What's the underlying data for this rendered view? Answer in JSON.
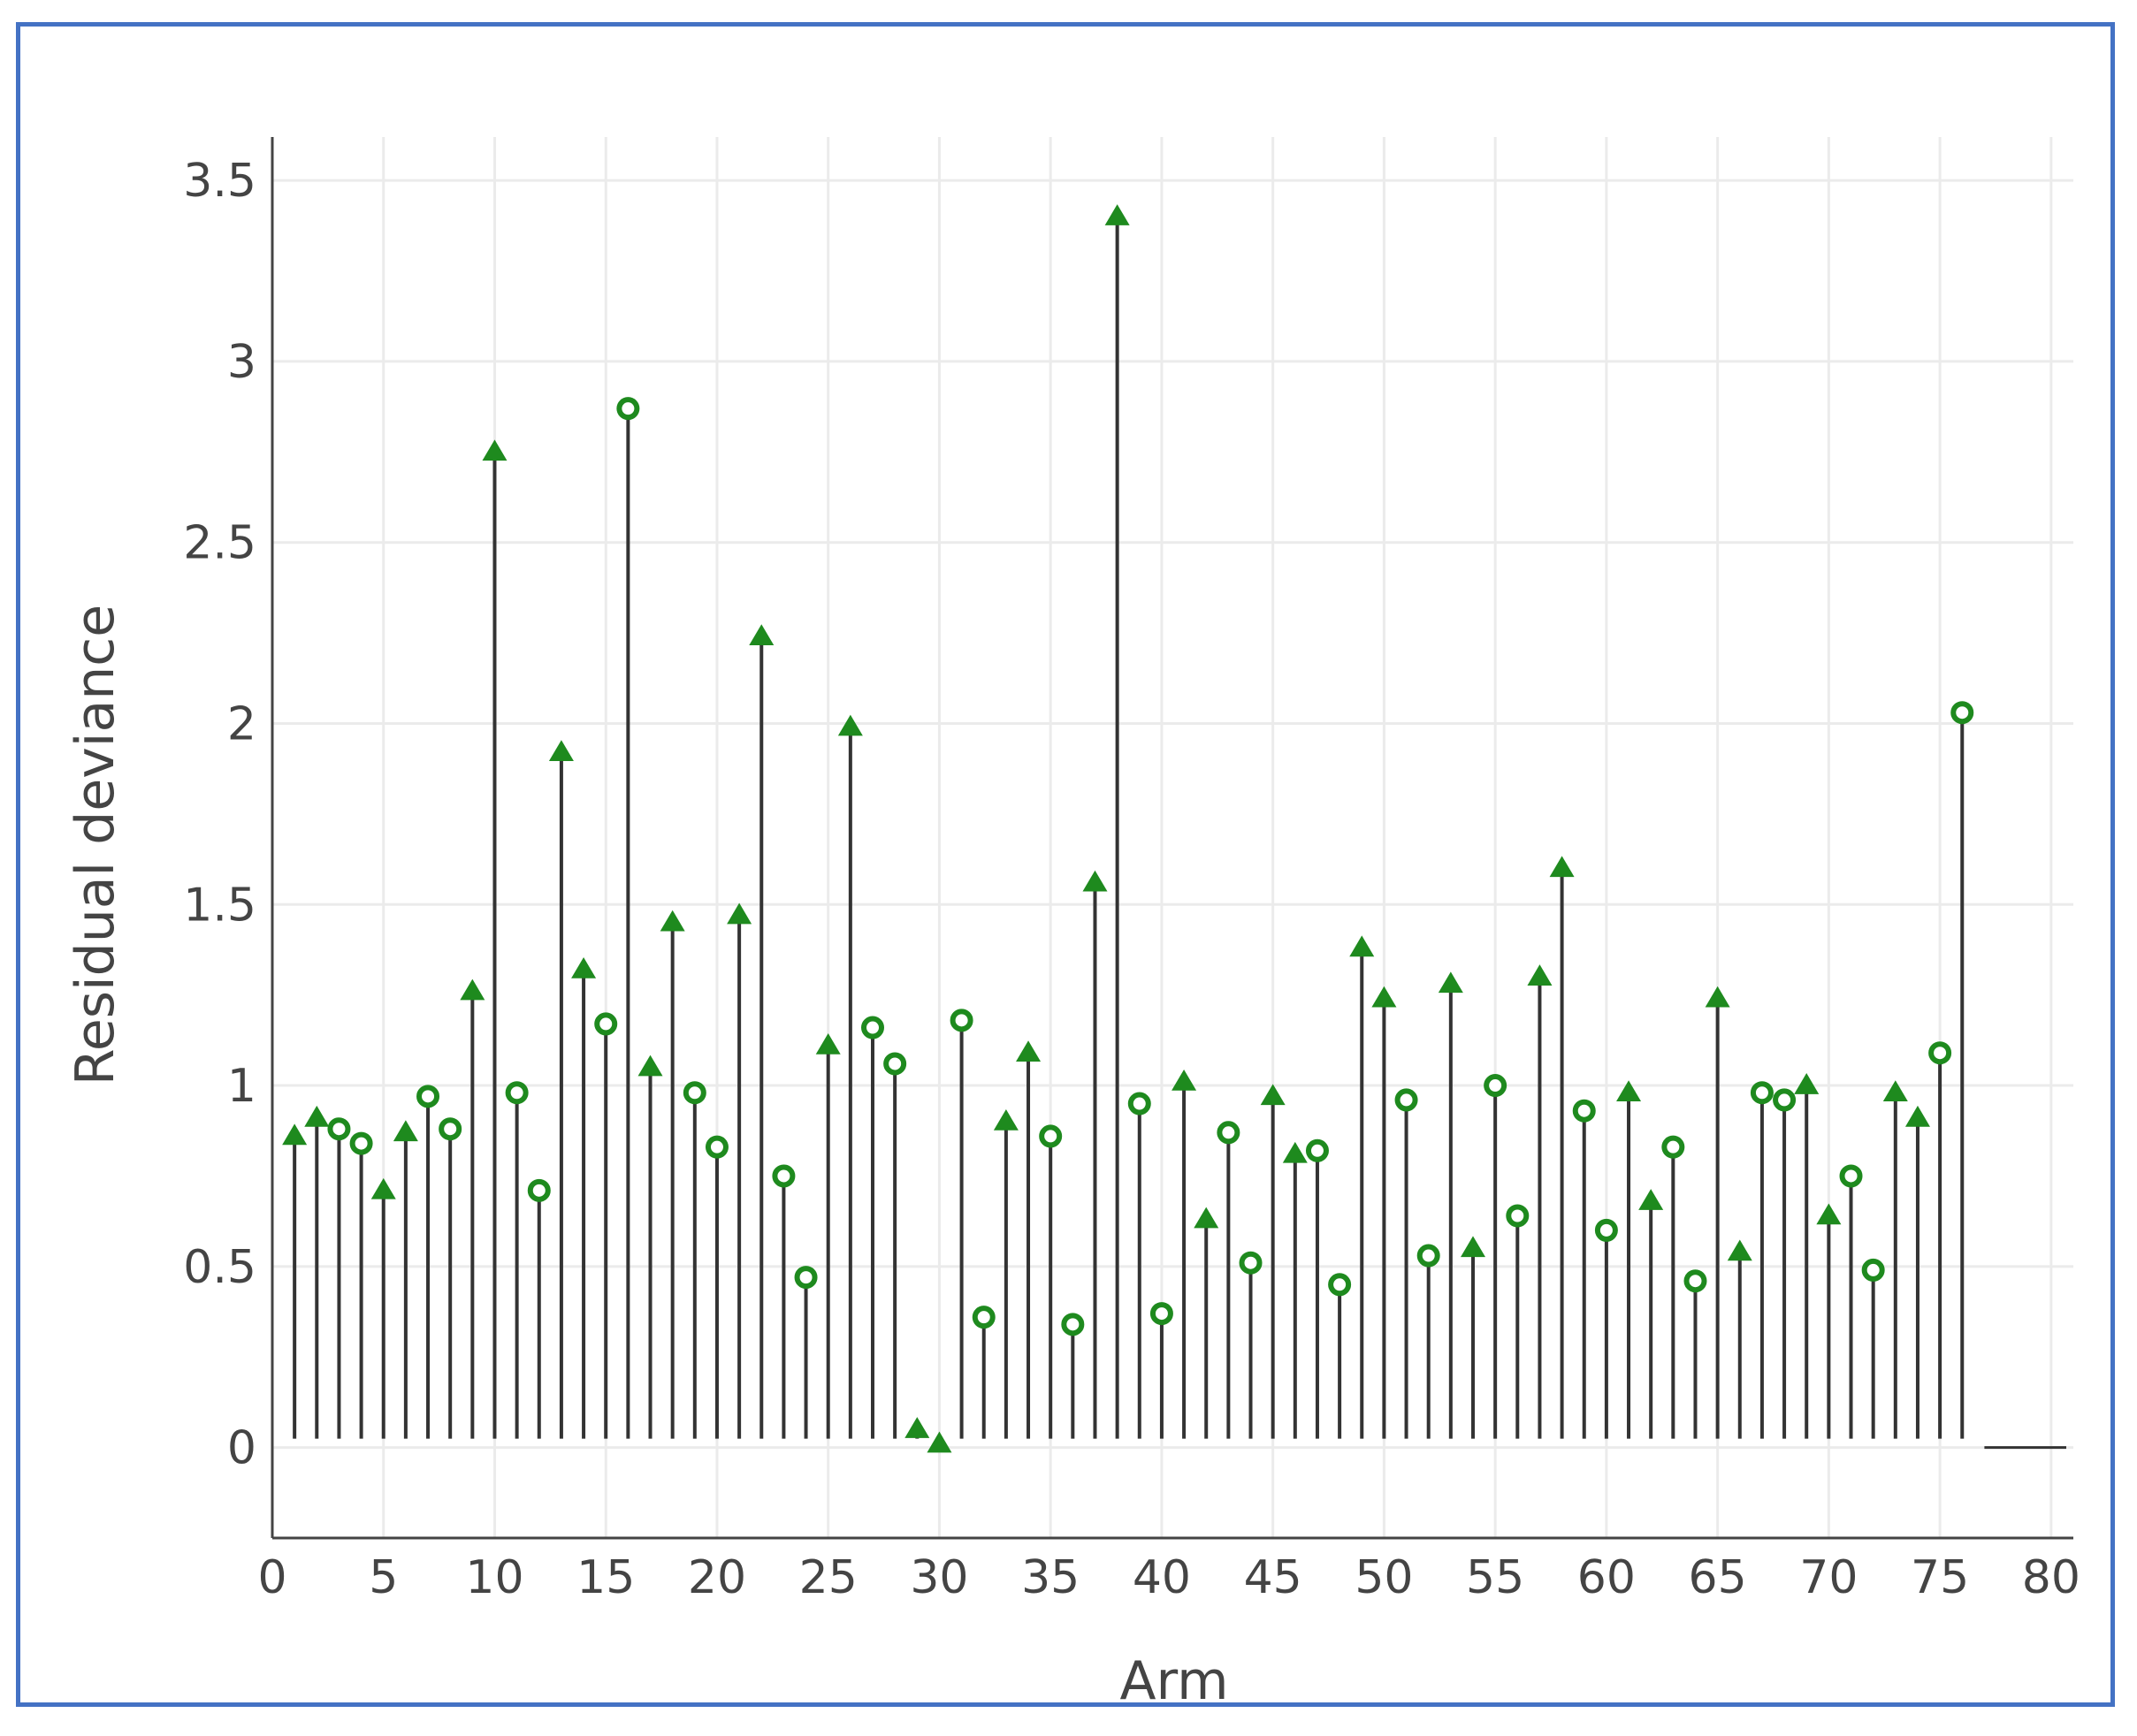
{
  "chart_data": {
    "type": "scatter",
    "style": "stem",
    "xlabel": "Arm",
    "ylabel": "Residual deviance",
    "xlim": [
      0,
      81
    ],
    "ylim": [
      -0.25,
      3.62
    ],
    "xticks": [
      "0",
      "5",
      "10",
      "15",
      "20",
      "25",
      "30",
      "35",
      "40",
      "45",
      "50",
      "55",
      "60",
      "65",
      "70",
      "75",
      "80"
    ],
    "yticks": [
      "0",
      "0.5",
      "1",
      "1.5",
      "2",
      "2.5",
      "3",
      "3.5"
    ],
    "grid": true,
    "marker_color": "#1e8a1e",
    "stem_color": "#333333",
    "zero_line_range": [
      77,
      81
    ],
    "x": [
      1,
      2,
      3,
      4,
      5,
      6,
      7,
      8,
      9,
      10,
      11,
      12,
      13,
      14,
      15,
      16,
      17,
      18,
      19,
      20,
      21,
      22,
      23,
      24,
      25,
      26,
      27,
      28,
      29,
      30,
      31,
      32,
      33,
      34,
      35,
      36,
      37,
      38,
      39,
      40,
      41,
      42,
      43,
      44,
      45,
      46,
      47,
      48,
      49,
      50,
      51,
      52,
      53,
      54,
      55,
      56,
      57,
      58,
      59,
      60,
      61,
      62,
      63,
      64,
      65,
      66,
      67,
      68,
      69,
      70,
      71,
      72,
      73,
      74,
      75,
      76
    ],
    "y": [
      0.86,
      0.91,
      0.88,
      0.84,
      0.71,
      0.87,
      0.97,
      0.88,
      1.26,
      2.75,
      0.98,
      0.71,
      1.92,
      1.32,
      1.17,
      2.87,
      1.05,
      1.45,
      0.98,
      0.83,
      1.47,
      2.24,
      0.75,
      0.47,
      1.11,
      1.99,
      1.16,
      1.06,
      0.05,
      0.01,
      1.18,
      0.36,
      0.9,
      1.09,
      0.86,
      0.34,
      1.56,
      3.4,
      0.95,
      0.37,
      1.01,
      0.63,
      0.87,
      0.51,
      0.97,
      0.81,
      0.82,
      0.45,
      1.38,
      1.24,
      0.96,
      0.53,
      1.28,
      0.55,
      1.0,
      0.64,
      1.3,
      1.6,
      0.93,
      0.6,
      0.98,
      0.68,
      0.83,
      0.46,
      1.24,
      0.54,
      0.98,
      0.96,
      1.0,
      0.64,
      0.75,
      0.49,
      0.98,
      0.91,
      1.09,
      2.03
    ],
    "markers": [
      "t",
      "t",
      "c",
      "c",
      "t",
      "t",
      "c",
      "c",
      "t",
      "t",
      "c",
      "c",
      "t",
      "t",
      "c",
      "c",
      "t",
      "t",
      "c",
      "c",
      "t",
      "t",
      "c",
      "c",
      "t",
      "t",
      "c",
      "c",
      "t",
      "t",
      "c",
      "c",
      "t",
      "t",
      "c",
      "c",
      "t",
      "t",
      "c",
      "c",
      "t",
      "t",
      "c",
      "c",
      "t",
      "t",
      "c",
      "c",
      "t",
      "t",
      "c",
      "c",
      "t",
      "t",
      "c",
      "c",
      "t",
      "t",
      "c",
      "c",
      "t",
      "t",
      "c",
      "c",
      "t",
      "t",
      "c",
      "c",
      "t",
      "t",
      "c",
      "c",
      "t",
      "t",
      "c",
      "c"
    ]
  }
}
